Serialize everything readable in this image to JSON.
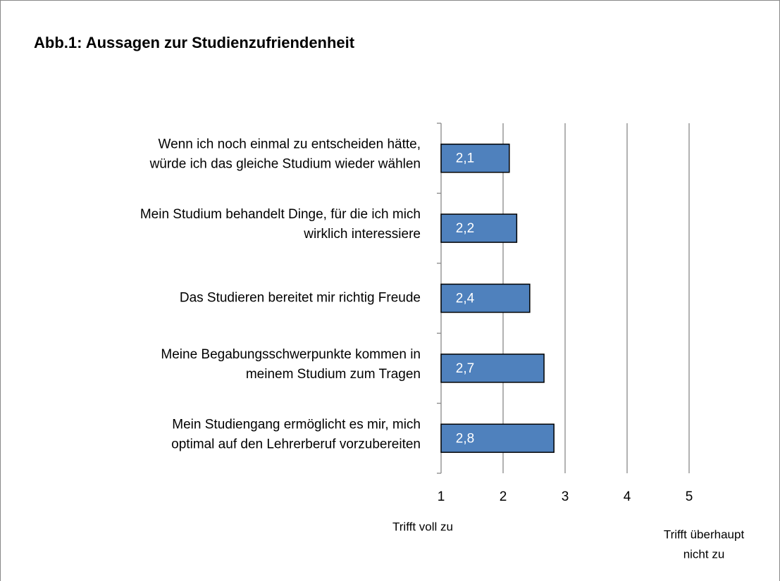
{
  "chart_data": {
    "type": "barh",
    "title": "Abb.1: Aussagen zur Studienzufriendenheit",
    "categories": [
      [
        "Wenn ich noch einmal zu entscheiden hätte,",
        "würde ich das gleiche Studium wieder wählen"
      ],
      [
        "Mein Studium behandelt Dinge, für die ich mich",
        "wirklich interessiere"
      ],
      [
        "Das Studieren bereitet mir richtig Freude"
      ],
      [
        "Meine Begabungsschwerpunkte kommen in",
        "meinem Studium zum Tragen"
      ],
      [
        "Mein Studiengang ermöglicht es mir, mich",
        "optimal auf den Lehrerberuf vorzubereiten"
      ]
    ],
    "values": [
      2.1,
      2.22,
      2.43,
      2.66,
      2.82
    ],
    "value_labels": [
      "2,1",
      "2,2",
      "2,4",
      "2,7",
      "2,8"
    ],
    "color": "#4f81bd",
    "xlim": [
      1,
      5
    ],
    "xticks": [
      1,
      2,
      3,
      4,
      5
    ],
    "grid": true,
    "xlabel_left": [
      "Trifft voll zu"
    ],
    "xlabel_right": [
      "Trifft überhaupt",
      "nicht zu"
    ]
  }
}
